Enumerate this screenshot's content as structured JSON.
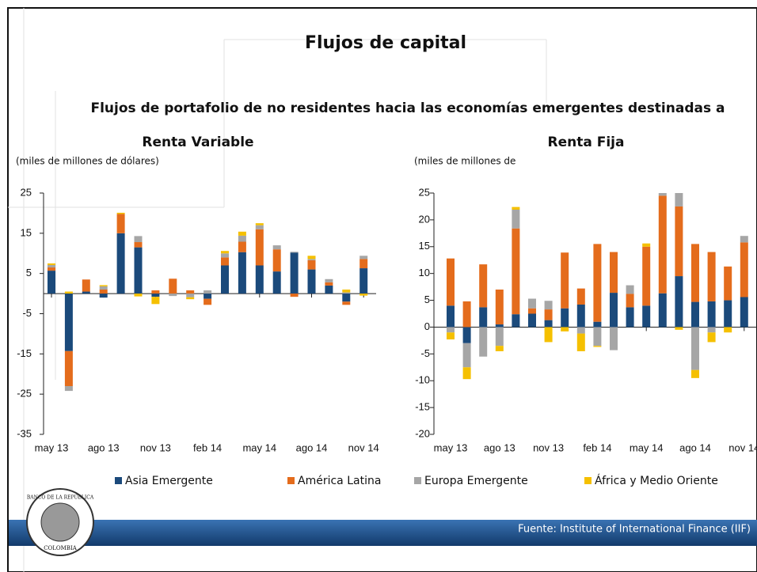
{
  "title": "Flujos de capital",
  "subtitle": "Flujos de portafolio de no residentes hacia las economías emergentes destinadas a",
  "source": "Fuente: Institute of International Finance (IIF)",
  "logo": {
    "top": "BANCO DE LA REPÚBLICA",
    "bottom": "COLOMBIA"
  },
  "chart_data": [
    {
      "type": "bar",
      "stacked": true,
      "title": "Renta Variable",
      "y_label": "(miles de millones de dólares)",
      "categories": [
        "may 13",
        null,
        null,
        "ago 13",
        null,
        null,
        "nov 13",
        null,
        null,
        "feb 14",
        null,
        null,
        "may 14",
        null,
        null,
        "ago 14",
        null,
        null,
        "nov 14"
      ],
      "ylim": [
        -35,
        25
      ],
      "yticks": [
        25,
        15,
        5,
        -5,
        -15,
        -25,
        -35
      ],
      "series": [
        {
          "name": "Asia Emergente",
          "color": "#1b4a7b",
          "values": [
            5.7,
            -14.3,
            0.5,
            -1,
            15,
            11.5,
            -0.8,
            0,
            0,
            -1.3,
            7,
            10.3,
            7,
            5.5,
            10.2,
            6,
            2,
            -2,
            6.3
          ]
        },
        {
          "name": "América Latina",
          "color": "#e46c1c",
          "values": [
            0.8,
            -8.7,
            3,
            1,
            4.8,
            1.3,
            0.8,
            3.7,
            0.8,
            -1.5,
            2,
            2.6,
            9,
            5.5,
            -0.8,
            2.3,
            0.8,
            -0.8,
            2.3
          ]
        },
        {
          "name": "Europa Emergente",
          "color": "#a6a6a6",
          "values": [
            0.6,
            -1.2,
            0,
            0.8,
            0,
            1.5,
            0,
            -0.6,
            -0.9,
            0.8,
            1,
            1.5,
            1,
            1,
            0.2,
            0.3,
            0.8,
            0.3,
            0.8
          ]
        },
        {
          "name": "África y Medio Oriente",
          "color": "#f5c000",
          "values": [
            0.4,
            0.5,
            0,
            0.3,
            0.3,
            -0.7,
            -1.8,
            0,
            -0.5,
            0,
            0.6,
            1,
            0.5,
            0,
            0,
            0.8,
            0,
            0.7,
            -0.5
          ]
        }
      ]
    },
    {
      "type": "bar",
      "stacked": true,
      "title": "Renta Fija",
      "y_label": "(miles de millones de",
      "categories": [
        "may 13",
        null,
        null,
        "ago 13",
        null,
        null,
        "nov 13",
        null,
        null,
        "feb 14",
        null,
        null,
        "may 14",
        null,
        null,
        "ago 14",
        null,
        null,
        "nov 14"
      ],
      "ylim": [
        -20,
        25
      ],
      "yticks": [
        25,
        20,
        15,
        10,
        5,
        0,
        -5,
        -10,
        -15,
        -20
      ],
      "series": [
        {
          "color": "#1b4a7b",
          "values": [
            4,
            -3,
            3.7,
            0.5,
            2.4,
            2.5,
            1.3,
            3.5,
            4.2,
            1,
            6.4,
            3.7,
            4,
            6.3,
            9.5,
            4.7,
            4.8,
            5,
            5.6
          ]
        },
        {
          "color": "#e46c1c",
          "values": [
            8.8,
            4.8,
            8,
            6.5,
            16,
            1,
            2,
            10.4,
            3,
            14.5,
            7.6,
            2.5,
            11,
            18.2,
            13,
            10.8,
            9.2,
            6.3,
            10.2
          ]
        },
        {
          "color": "#a6a6a6",
          "values": [
            -1,
            -4.5,
            -5.5,
            -3.5,
            3.5,
            1.8,
            1.6,
            0,
            -1.2,
            -3.5,
            -4.3,
            1.6,
            0,
            0.5,
            2.5,
            -8,
            -1,
            0,
            1.2
          ]
        },
        {
          "color": "#f5c000",
          "values": [
            -1.3,
            -2.2,
            0,
            -1,
            0.5,
            0,
            -2.8,
            -0.8,
            -3.3,
            -0.2,
            0,
            0,
            0.6,
            0,
            -0.5,
            -1.5,
            -1.8,
            -1,
            0
          ]
        }
      ]
    }
  ]
}
